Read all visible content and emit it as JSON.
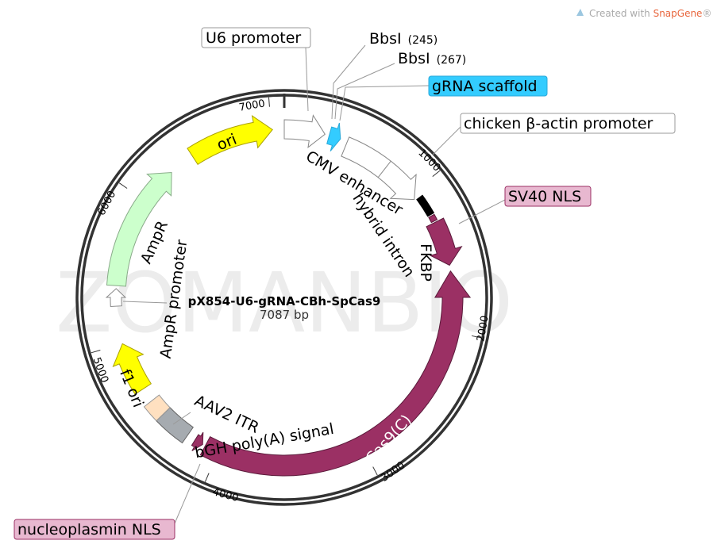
{
  "credit": {
    "prefix": "Created with ",
    "brand": "SnapGene",
    "suffix": "®"
  },
  "watermark": "ZOMANBIO",
  "plasmid": {
    "name": "pX854-U6-gRNA-CBh-SpCas9",
    "size": "7087 bp"
  },
  "ticks": [
    "1000",
    "2000",
    "3000",
    "4000",
    "5000",
    "6000",
    "7000"
  ],
  "callouts": {
    "u6": "U6 promoter",
    "bbs1": {
      "name": "BbsI",
      "pos": "(245)"
    },
    "bbs2": {
      "name": "BbsI",
      "pos": "(267)"
    },
    "grna": "gRNA scaffold",
    "cba": "chicken β-actin promoter",
    "sv40": "SV40 NLS",
    "npnls": "nucleoplasmin NLS"
  },
  "features": {
    "cmv": "CMV enhancer",
    "intron": "hybrid intron",
    "fkbp": "FKBP",
    "cas9": "Cas9(C)",
    "ori": "ori",
    "ampr": "AmpR",
    "ampr_promoter": "AmpR promoter",
    "f1": "f1 ori",
    "itr": "AAV2 ITR",
    "bgh": "bGH poly(A) signal"
  },
  "colors": {
    "cas9": "#9b3064",
    "ori": "#ffff00",
    "ampr": "#ccffcc",
    "grna": "#33ccff",
    "pink_box": "#e8b8d0",
    "itr": "#ffe0c0",
    "bgh": "#a6abb0",
    "brand": "#e8663d"
  }
}
